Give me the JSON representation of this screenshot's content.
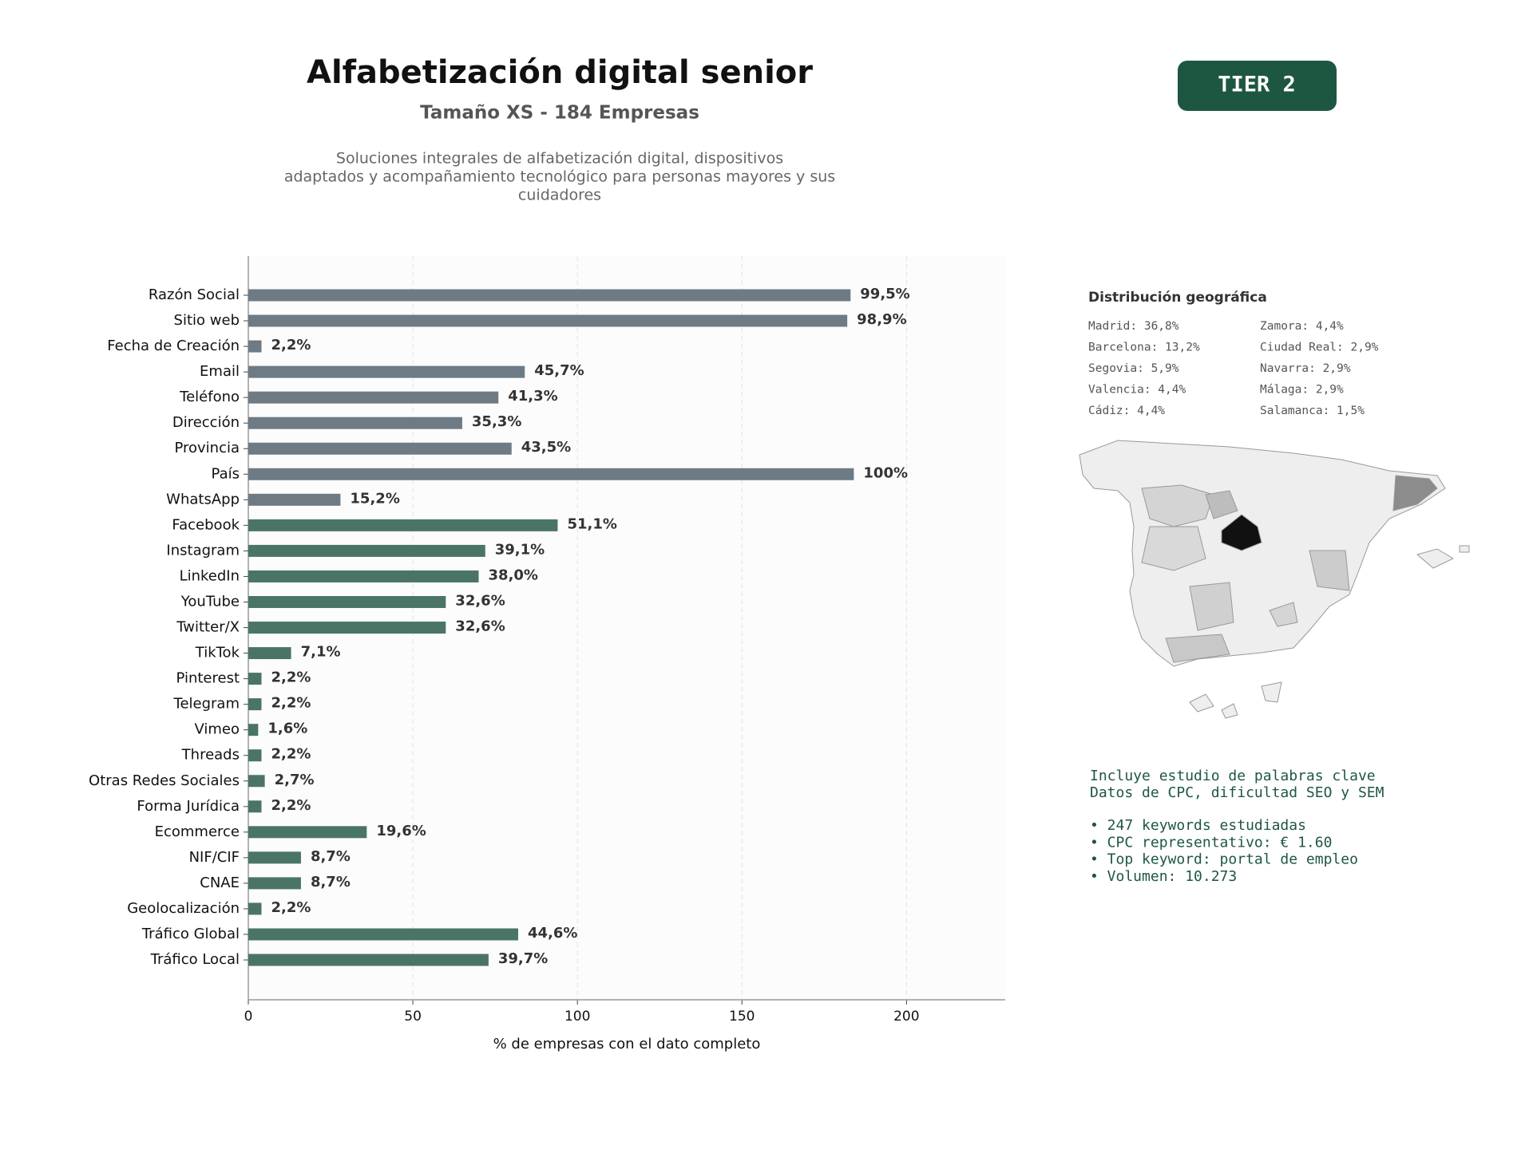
{
  "chart_data": {
    "type": "bar",
    "orientation": "horizontal",
    "title": "Alfabetización digital senior",
    "subtitle": "Tamaño XS - 184 Empresas",
    "description": [
      "Soluciones integrales de alfabetización digital, dispositivos",
      "adaptados y acompañamiento tecnológico para personas mayores y sus",
      "cuidadores"
    ],
    "xlabel": "% de empresas con el dato completo",
    "categories": [
      "Razón Social",
      "Sitio web",
      "Fecha de Creación",
      "Email",
      "Teléfono",
      "Dirección",
      "Provincia",
      "País",
      "WhatsApp",
      "Facebook",
      "Instagram",
      "LinkedIn",
      "YouTube",
      "Twitter/X",
      "TikTok",
      "Pinterest",
      "Telegram",
      "Vimeo",
      "Threads",
      "Otras Redes Sociales",
      "Forma Jurídica",
      "Ecommerce",
      "NIF/CIF",
      "CNAE",
      "Geolocalización",
      "Tráfico Global",
      "Tráfico Local"
    ],
    "values": [
      183,
      182,
      4,
      84,
      76,
      65,
      80,
      184,
      28,
      94,
      72,
      70,
      60,
      60,
      13,
      4,
      4,
      3,
      4,
      5,
      4,
      36,
      16,
      16,
      4,
      82,
      73
    ],
    "value_labels": [
      "99,5%",
      "98,9%",
      "2,2%",
      "45,7%",
      "41,3%",
      "35,3%",
      "43,5%",
      "100%",
      "15,2%",
      "51,1%",
      "39,1%",
      "38,0%",
      "32,6%",
      "32,6%",
      "7,1%",
      "2,2%",
      "2,2%",
      "1,6%",
      "2,2%",
      "2,7%",
      "2,2%",
      "19,6%",
      "8,7%",
      "8,7%",
      "2,2%",
      "44,6%",
      "39,7%"
    ],
    "colors": [
      "#6e7b85",
      "#6e7b85",
      "#6e7b85",
      "#6e7b85",
      "#6e7b85",
      "#6e7b85",
      "#6e7b85",
      "#6e7b85",
      "#6e7b85",
      "#4a7566",
      "#4a7566",
      "#4a7566",
      "#4a7566",
      "#4a7566",
      "#4a7566",
      "#4a7566",
      "#4a7566",
      "#4a7566",
      "#4a7566",
      "#4a7566",
      "#4a7566",
      "#4a7566",
      "#4a7566",
      "#4a7566",
      "#4a7566",
      "#4a7566",
      "#4a7566"
    ],
    "xlim": [
      0,
      230
    ],
    "xticks": [
      0,
      50,
      100,
      150,
      200
    ],
    "grid": true
  },
  "badge": "TIER 2",
  "geo": {
    "title": "Distribución geográfica",
    "entries": [
      "Madrid: 36,8%",
      "Barcelona: 13,2%",
      "Segovia: 5,9%",
      "Valencia: 4,4%",
      "Cádiz: 4,4%",
      "Zamora: 4,4%",
      "Ciudad Real: 2,9%",
      "Navarra: 2,9%",
      "Málaga: 2,9%",
      "Salamanca: 1,5%"
    ]
  },
  "keywords": {
    "intro": [
      "Incluye estudio de palabras clave",
      "Datos de CPC, dificultad SEO y SEM"
    ],
    "bullets": [
      "• 247 keywords estudiadas",
      "• CPC representativo: € 1.60",
      "• Top keyword: portal de empleo",
      "• Volumen: 10.273"
    ]
  }
}
